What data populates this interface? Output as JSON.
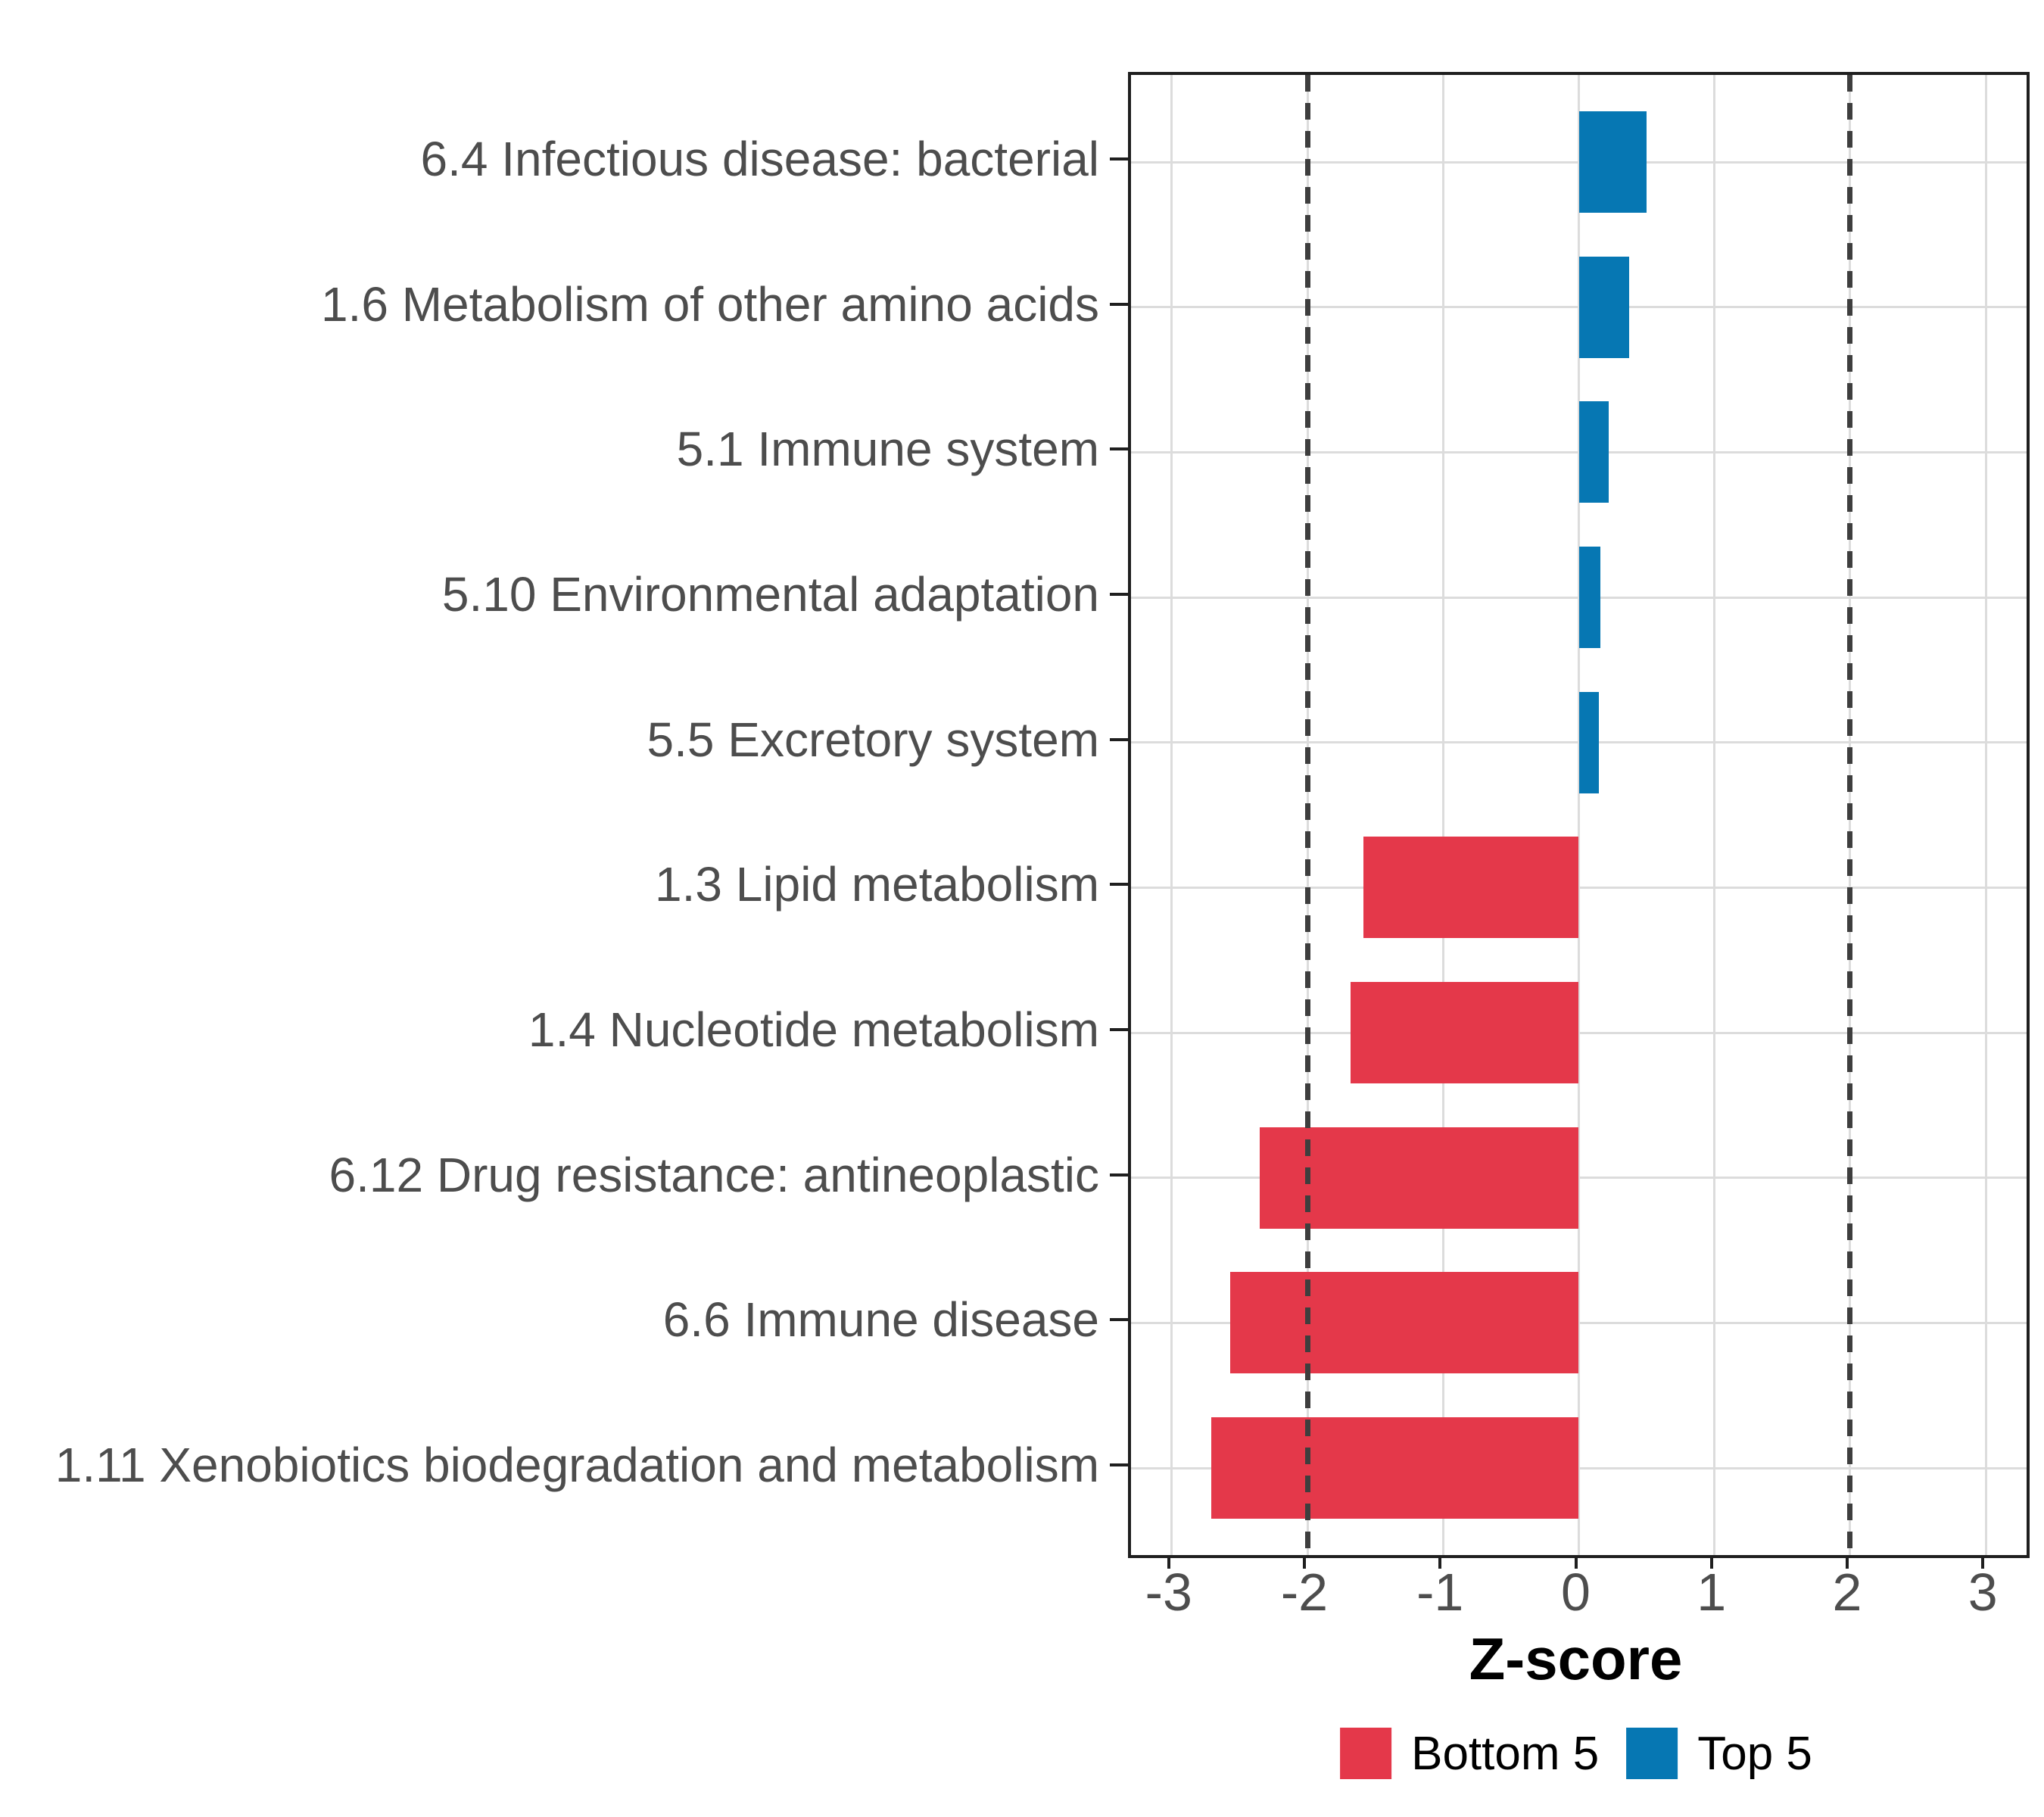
{
  "chart_data": {
    "type": "bar",
    "orientation": "horizontal",
    "title": "",
    "xlabel": "Z-score",
    "ylabel": "",
    "categories": [
      "6.4 Infectious disease: bacterial",
      "1.6 Metabolism of other amino acids",
      "5.1 Immune system",
      "5.10 Environmental adaptation",
      "5.5 Excretory system",
      "1.3 Lipid metabolism",
      "1.4 Nucleotide metabolism",
      "6.12 Drug resistance: antineoplastic",
      "6.6 Immune disease",
      "1.11 Xenobiotics biodegradation and metabolism"
    ],
    "series": [
      {
        "name": "Top 5",
        "color": "#0677b3",
        "categories": [
          "6.4 Infectious disease: bacterial",
          "1.6 Metabolism of other amino acids",
          "5.1 Immune system",
          "5.10 Environmental adaptation",
          "5.5 Excretory system"
        ],
        "values": [
          0.5,
          0.37,
          0.22,
          0.16,
          0.15
        ]
      },
      {
        "name": "Bottom 5",
        "color": "#e4384a",
        "categories": [
          "1.3 Lipid metabolism",
          "1.4 Nucleotide metabolism",
          "6.12 Drug resistance: antineoplastic",
          "6.6 Immune disease",
          "1.11 Xenobiotics biodegradation and metabolism"
        ],
        "values": [
          -1.59,
          -1.68,
          -2.35,
          -2.57,
          -2.71
        ]
      }
    ],
    "values": [
      0.5,
      0.37,
      0.22,
      0.16,
      0.15,
      -1.59,
      -1.68,
      -2.35,
      -2.57,
      -2.71
    ],
    "groups": [
      "Top 5",
      "Top 5",
      "Top 5",
      "Top 5",
      "Top 5",
      "Bottom 5",
      "Bottom 5",
      "Bottom 5",
      "Bottom 5",
      "Bottom 5"
    ],
    "x_ticks": [
      -3,
      -2,
      -1,
      0,
      1,
      2,
      3
    ],
    "x_tick_labels": [
      "-3",
      "-2",
      "-1",
      "0",
      "1",
      "2",
      "3"
    ],
    "xlim": [
      -3.3,
      3.3
    ],
    "reference_lines": [
      {
        "x": -2,
        "style": "dashed"
      },
      {
        "x": 2,
        "style": "dashed"
      }
    ],
    "grid": true,
    "bar_width_fraction": 0.7,
    "legend": {
      "position": "bottom",
      "entries": [
        {
          "label": "Bottom 5",
          "color": "#e4384a"
        },
        {
          "label": "Top 5",
          "color": "#0677b3"
        }
      ]
    }
  },
  "colors": {
    "background": "#ffffff",
    "panel_border": "#1f1f1f",
    "grid": "#dcdcdc",
    "dashed_line": "#3e3e3e",
    "axis_text": "#4d4d4d",
    "title_text": "#000000",
    "legend_text": "#000000",
    "bottom5": "#e4384a",
    "top5": "#0677b3"
  }
}
